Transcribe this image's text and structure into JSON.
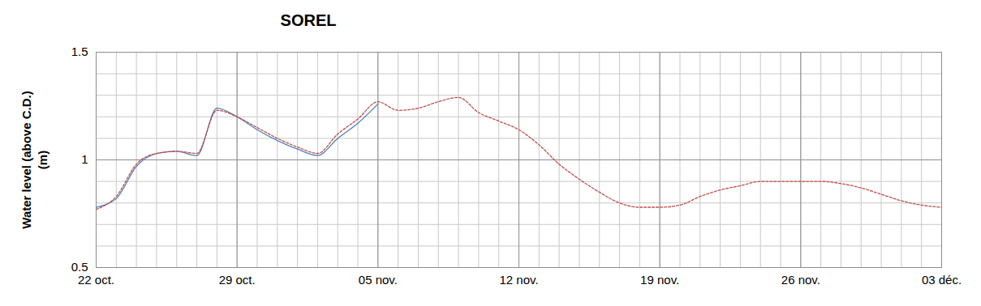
{
  "chart_data": {
    "type": "line",
    "title": "SOREL",
    "y_label": "Water level (above C.D.)\n(m)",
    "x": [
      0,
      1,
      2,
      3,
      4,
      5,
      6,
      7,
      8,
      9,
      10,
      11,
      12,
      13,
      14,
      15,
      16,
      17,
      18,
      19,
      20,
      21,
      22,
      23,
      24,
      25,
      26,
      27,
      28,
      29,
      30,
      31,
      32,
      33,
      34,
      35,
      36,
      37,
      38,
      39,
      40,
      41,
      42
    ],
    "series": [
      {
        "color": "#4f81bd",
        "line_style": "solid",
        "values": [
          0.78,
          0.82,
          0.97,
          1.03,
          1.04,
          1.02,
          1.24,
          1.2,
          1.14,
          1.09,
          1.05,
          1.02,
          1.1,
          1.17,
          1.26,
          null,
          null,
          null,
          null,
          null,
          null,
          null,
          null,
          null,
          null,
          null,
          null,
          null,
          null,
          null,
          null,
          null,
          null,
          null,
          null,
          null,
          null,
          null,
          null,
          null,
          null,
          null,
          null
        ]
      },
      {
        "color": "#c0504d",
        "line_style": "dashed",
        "values": [
          0.77,
          0.83,
          0.98,
          1.03,
          1.04,
          1.03,
          1.23,
          1.2,
          1.15,
          1.1,
          1.06,
          1.03,
          1.12,
          1.19,
          1.27,
          1.23,
          1.24,
          1.27,
          1.29,
          1.22,
          1.18,
          1.14,
          1.07,
          0.98,
          0.91,
          0.85,
          0.8,
          0.78,
          0.78,
          0.79,
          0.83,
          0.86,
          0.88,
          0.9,
          0.9,
          0.9,
          0.9,
          0.89,
          0.87,
          0.84,
          0.81,
          0.79,
          0.78
        ]
      }
    ],
    "xlim": [
      0,
      42
    ],
    "xticks": [
      {
        "value": 0,
        "label": "22 oct."
      },
      {
        "value": 7,
        "label": "29 oct."
      },
      {
        "value": 14,
        "label": "05 nov."
      },
      {
        "value": 21,
        "label": "12 nov."
      },
      {
        "value": 28,
        "label": "19 nov."
      },
      {
        "value": 35,
        "label": "26 nov."
      },
      {
        "value": 42,
        "label": "03 déc."
      }
    ],
    "ylim": [
      0.5,
      1.5
    ],
    "yticks": [
      0.5,
      1,
      1.5
    ],
    "grid": true
  }
}
